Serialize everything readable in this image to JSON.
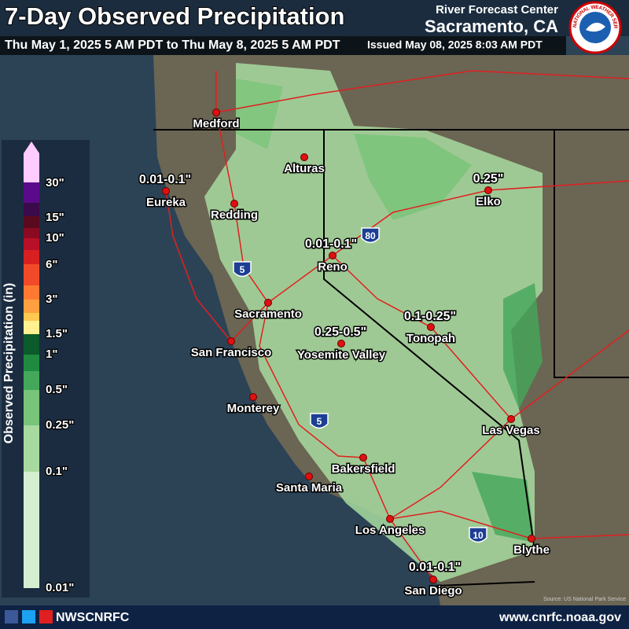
{
  "header": {
    "title": "7-Day Observed Precipitation",
    "period": "Thu May 1, 2025 5 AM PDT to Thu May 8, 2025 5 AM PDT",
    "center": "River Forecast Center",
    "location": "Sacramento, CA",
    "issued": "Issued May 08, 2025 8:03 AM PDT",
    "logo": "NATIONAL WEATHER SERVICE"
  },
  "legend": {
    "title": "Observed Precipitation (in)",
    "labels": [
      "30\"",
      "15\"",
      "10\"",
      "6\"",
      "3\"",
      "1.5\"",
      "1\"",
      "0.5\"",
      "0.25\"",
      "0.1\"",
      "0.01\""
    ],
    "colors": [
      "#ffccff",
      "#5a0a8a",
      "#3a0a4a",
      "#5a0a1e",
      "#8a0a22",
      "#b81028",
      "#d82020",
      "#f04a28",
      "#ff7a30",
      "#ffa040",
      "#ffc850",
      "#fff090",
      "#0b5a2a",
      "#1f8a40",
      "#44a85a",
      "#78c478",
      "#a8daa0",
      "#d4eed0"
    ]
  },
  "cities": [
    "Medford",
    "Alturas",
    "Eureka",
    "Redding",
    "Elko",
    "Reno",
    "Sacramento",
    "San Francisco",
    "Yosemite Valley",
    "Tonopah",
    "Monterey",
    "Las Vegas",
    "Bakersfield",
    "Santa Maria",
    "Los Angeles",
    "Blythe",
    "San Diego"
  ],
  "annotations": [
    "0.01-0.1\"",
    "0.25\"",
    "0.01-0.1\"",
    "0.1-0.25\"",
    "0.25-0.5\"",
    "0.01-0.1\""
  ],
  "shields": [
    "5",
    "80",
    "5",
    "10"
  ],
  "footer": {
    "handle": "NWSCNRFC",
    "url": "www.cnrfc.noaa.gov",
    "source": "Source: US National Park Service"
  }
}
